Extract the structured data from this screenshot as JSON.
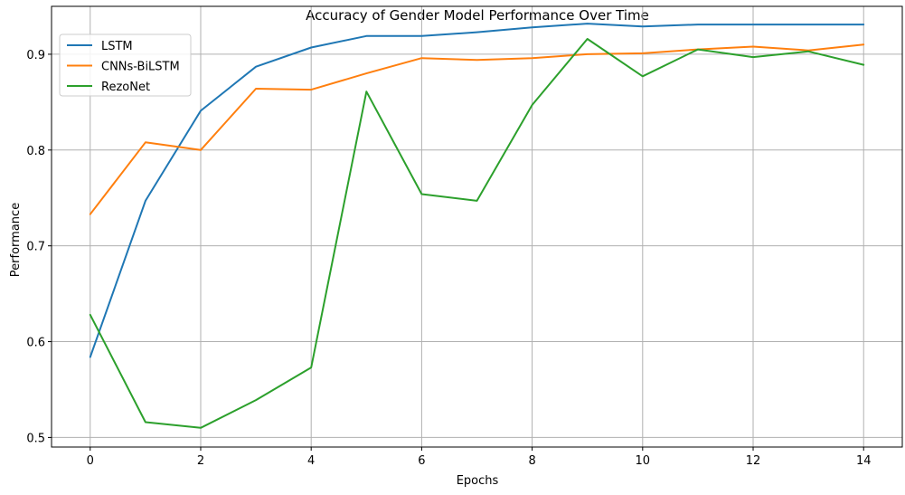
{
  "chart_data": {
    "type": "line",
    "title": "Accuracy of Gender Model Performance Over Time",
    "xlabel": "Epochs",
    "ylabel": "Performance",
    "x": [
      0,
      1,
      2,
      3,
      4,
      5,
      6,
      7,
      8,
      9,
      10,
      11,
      12,
      13,
      14
    ],
    "xlim": [
      -0.7,
      14.7
    ],
    "ylim": [
      0.49,
      0.95
    ],
    "xticks": [
      0,
      2,
      4,
      6,
      8,
      10,
      12,
      14
    ],
    "yticks": [
      0.5,
      0.6,
      0.7,
      0.8,
      0.9
    ],
    "xtick_labels": [
      "0",
      "2",
      "4",
      "6",
      "8",
      "10",
      "12",
      "14"
    ],
    "ytick_labels": [
      "0.5",
      "0.6",
      "0.7",
      "0.8",
      "0.9"
    ],
    "grid": true,
    "legend_position": "top-left",
    "series": [
      {
        "name": "LSTM",
        "color": "#1f77b4",
        "values": [
          0.584,
          0.747,
          0.841,
          0.887,
          0.907,
          0.919,
          0.919,
          0.923,
          0.928,
          0.932,
          0.929,
          0.931,
          0.931,
          0.931,
          0.931
        ]
      },
      {
        "name": "CNNs-BiLSTM",
        "color": "#ff7f0e",
        "values": [
          0.733,
          0.808,
          0.8,
          0.864,
          0.863,
          0.88,
          0.896,
          0.894,
          0.896,
          0.9,
          0.901,
          0.905,
          0.908,
          0.904,
          0.91
        ]
      },
      {
        "name": "RezoNet",
        "color": "#2ca02c",
        "values": [
          0.628,
          0.516,
          0.51,
          0.539,
          0.573,
          0.861,
          0.754,
          0.747,
          0.847,
          0.916,
          0.877,
          0.905,
          0.897,
          0.903,
          0.889
        ]
      }
    ]
  }
}
